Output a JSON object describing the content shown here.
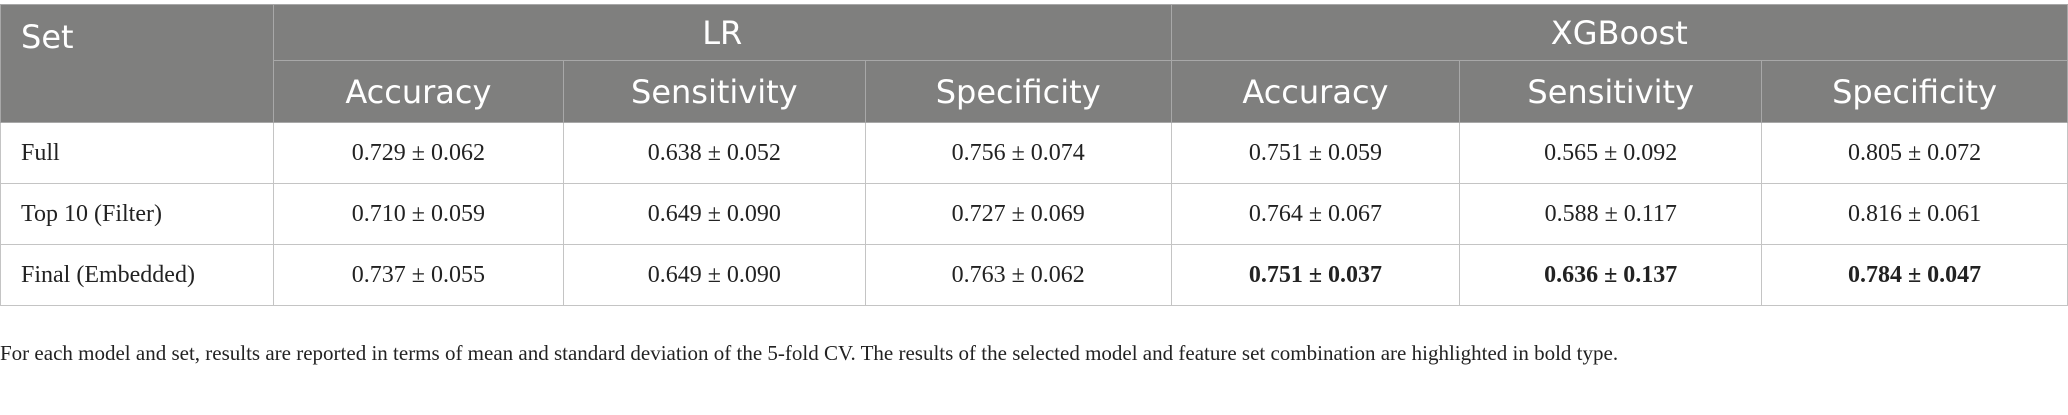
{
  "table": {
    "set_header": "Set",
    "groups": [
      "LR",
      "XGBoost"
    ],
    "metrics": [
      "Accuracy",
      "Sensitivity",
      "Specificity"
    ],
    "rows": [
      {
        "set": "Full",
        "values": [
          "0.729 ± 0.062",
          "0.638 ± 0.052",
          "0.756 ± 0.074",
          "0.751 ± 0.059",
          "0.565 ± 0.092",
          "0.805 ± 0.072"
        ],
        "bold": [
          false,
          false,
          false,
          false,
          false,
          false
        ]
      },
      {
        "set": "Top 10 (Filter)",
        "values": [
          "0.710 ± 0.059",
          "0.649 ± 0.090",
          "0.727 ± 0.069",
          "0.764 ± 0.067",
          "0.588 ± 0.117",
          "0.816 ± 0.061"
        ],
        "bold": [
          false,
          false,
          false,
          false,
          false,
          false
        ]
      },
      {
        "set": "Final (Embedded)",
        "values": [
          "0.737 ± 0.055",
          "0.649 ± 0.090",
          "0.763 ± 0.062",
          "0.751 ± 0.037",
          "0.636 ± 0.137",
          "0.784 ± 0.047"
        ],
        "bold": [
          false,
          false,
          false,
          true,
          true,
          true
        ]
      }
    ]
  },
  "footnote": "For each model and set, results are reported in terms of mean and standard deviation of the 5-fold CV. The results of the selected model and feature set combination are highlighted in bold type."
}
